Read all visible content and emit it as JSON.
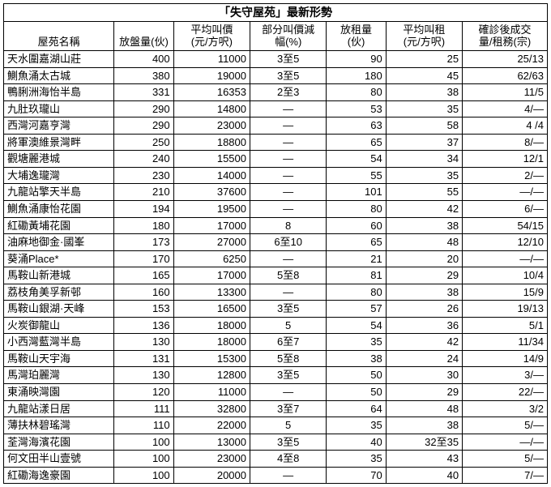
{
  "title": "「失守屋苑」最新形勢",
  "columns": [
    "屋苑名稱",
    "放盤量(伙)",
    "平均叫價\n(元/方呎)",
    "部分叫價減\n幅(%)",
    "放租量\n(伙)",
    "平均叫租\n(元/方呎)",
    "確診後成交\n量/租務(宗)"
  ],
  "rows": [
    [
      "天水圍嘉湖山莊",
      "400",
      "11000",
      "3至5",
      "90",
      "25",
      "25/13"
    ],
    [
      "鰂魚涌太古城",
      "380",
      "19000",
      "3至5",
      "180",
      "45",
      "62/63"
    ],
    [
      "鴨脷洲海怡半島",
      "331",
      "16353",
      "2至3",
      "80",
      "38",
      "11/5"
    ],
    [
      "九肚玖瓏山",
      "290",
      "14800",
      "—",
      "53",
      "35",
      "4/—"
    ],
    [
      "西灣河嘉亨灣",
      "290",
      "23000",
      "—",
      "63",
      "58",
      "4 /4"
    ],
    [
      "將軍澳維景灣畔",
      "250",
      "18800",
      "—",
      "65",
      "37",
      "8/—"
    ],
    [
      "觀塘麗港城",
      "240",
      "15500",
      "—",
      "54",
      "34",
      "12/1"
    ],
    [
      "大埔逸瓏灣",
      "230",
      "14000",
      "—",
      "55",
      "35",
      "2/—"
    ],
    [
      "九龍站擎天半島",
      "210",
      "37600",
      "—",
      "101",
      "55",
      "—/—"
    ],
    [
      "鰂魚涌康怡花園",
      "194",
      "19500",
      "—",
      "80",
      "42",
      "6/—"
    ],
    [
      "紅磡黃埔花園",
      "180",
      "17000",
      "8",
      "60",
      "38",
      "54/15"
    ],
    [
      "油麻地御金·國峯",
      "173",
      "27000",
      "6至10",
      "65",
      "48",
      "12/10"
    ],
    [
      "葵涌Place*",
      "170",
      "6250",
      "—",
      "21",
      "20",
      "—/—"
    ],
    [
      "馬鞍山新港城",
      "165",
      "17000",
      "5至8",
      "81",
      "29",
      "10/4"
    ],
    [
      "荔枝角美孚新邨",
      "160",
      "13300",
      "—",
      "80",
      "38",
      "15/9"
    ],
    [
      "馬鞍山銀湖·天峰",
      "153",
      "16500",
      "3至5",
      "57",
      "26",
      "19/13"
    ],
    [
      "火炭御龍山",
      "136",
      "18000",
      "5",
      "54",
      "36",
      "5/1"
    ],
    [
      "小西灣藍灣半島",
      "130",
      "18000",
      "6至7",
      "35",
      "42",
      "11/34"
    ],
    [
      "馬鞍山天宇海",
      "131",
      "15300",
      "5至8",
      "38",
      "24",
      "14/9"
    ],
    [
      "馬灣珀麗灣",
      "130",
      "12800",
      "3至5",
      "50",
      "30",
      "3/—"
    ],
    [
      "東涌映灣園",
      "120",
      "11000",
      "—",
      "50",
      "29",
      "22/—"
    ],
    [
      "九龍站漾日居",
      "111",
      "32800",
      "3至7",
      "64",
      "48",
      "3/2"
    ],
    [
      "薄扶林碧瑤灣",
      "110",
      "22000",
      "5",
      "35",
      "38",
      "5/—"
    ],
    [
      "荃灣海濱花園",
      "100",
      "13000",
      "3至5",
      "40",
      "32至35",
      "—/—"
    ],
    [
      "何文田半山壹號",
      "100",
      "23000",
      "4至8",
      "35",
      "43",
      "5/—"
    ],
    [
      "紅磡海逸豪園",
      "100",
      "20000",
      "—",
      "70",
      "40",
      "7/—"
    ]
  ],
  "style": {
    "background": "#ffffff",
    "border_color": "#000000",
    "text_color": "#000000",
    "font_size_body": 13,
    "font_size_title": 14
  }
}
